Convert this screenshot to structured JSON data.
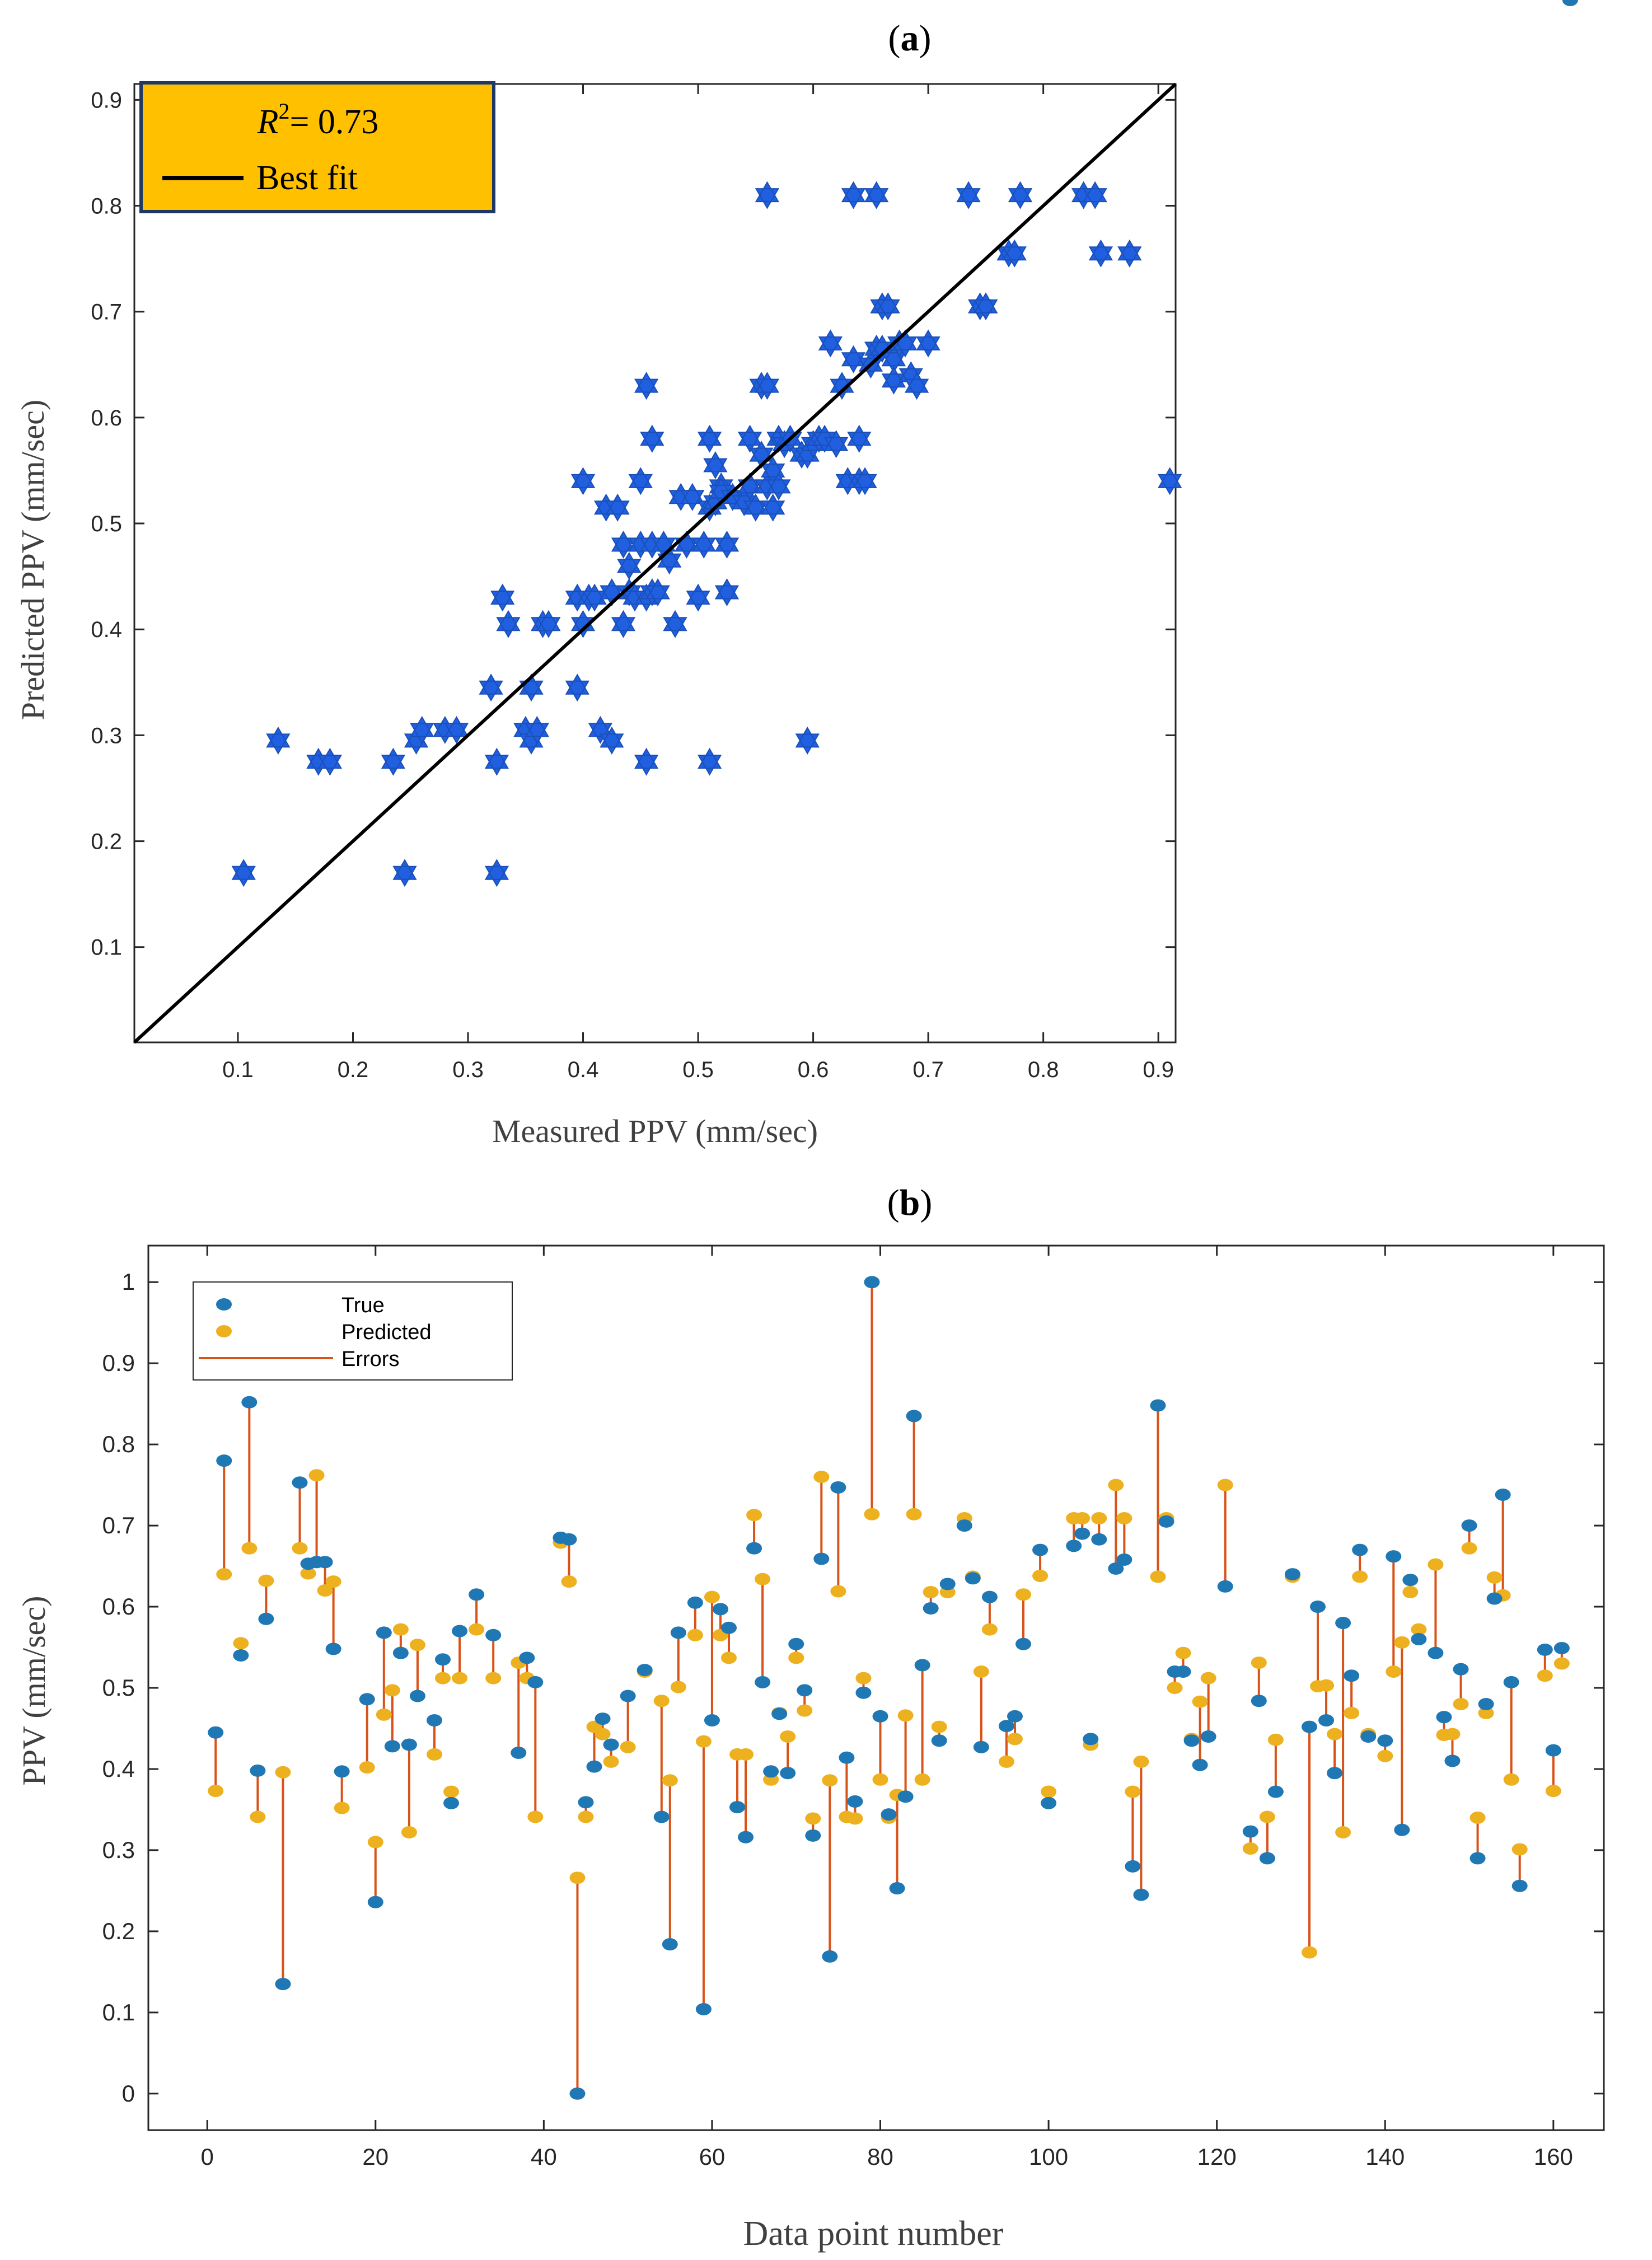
{
  "panels": {
    "a": {
      "label_open": "(",
      "label_letter": "a",
      "label_close": ")"
    },
    "b": {
      "label_open": "(",
      "label_letter": "b",
      "label_close": ")"
    }
  },
  "chart_data": [
    {
      "type": "scatter",
      "title": "",
      "xlabel": "Measured PPV (mm/sec)",
      "ylabel": "Predicted PPV (mm/sec)",
      "xlim": [
        0.01,
        0.915
      ],
      "ylim": [
        0.01,
        0.915
      ],
      "xticks": [
        "0.1",
        "0.2",
        "0.3",
        "0.4",
        "0.5",
        "0.6",
        "0.7",
        "0.8",
        "0.9"
      ],
      "yticks": [
        "0.1",
        "0.2",
        "0.3",
        "0.4",
        "0.5",
        "0.6",
        "0.7",
        "0.8",
        "0.9"
      ],
      "grid": false,
      "legend_position": "top-left",
      "annotation_r2_base": "R",
      "annotation_r2_exp": "2",
      "annotation_r2_value": "= 0.73",
      "legend_best_fit": "Best fit",
      "best_fit_line": {
        "x": [
          0.01,
          0.915
        ],
        "y": [
          0.01,
          0.915
        ]
      },
      "marker_color": "#1f5fe0",
      "line_color": "#000000",
      "legend_bg": "#ffc000",
      "legend_border": "#1f3864",
      "series": [
        {
          "x": [
            0.105,
            0.135,
            0.17,
            0.18,
            0.235,
            0.245,
            0.255,
            0.26,
            0.28,
            0.29,
            0.32,
            0.325,
            0.325,
            0.33,
            0.335,
            0.35,
            0.355,
            0.355,
            0.36,
            0.365,
            0.37,
            0.395,
            0.395,
            0.4,
            0.4,
            0.405,
            0.41,
            0.415,
            0.42,
            0.425,
            0.425,
            0.43,
            0.435,
            0.435,
            0.44,
            0.44,
            0.445,
            0.45,
            0.45,
            0.455,
            0.455,
            0.46,
            0.46,
            0.46,
            0.465,
            0.47,
            0.475,
            0.48,
            0.485,
            0.49,
            0.495,
            0.5,
            0.505,
            0.51,
            0.51,
            0.515,
            0.515,
            0.52,
            0.52,
            0.525,
            0.525,
            0.53,
            0.54,
            0.545,
            0.545,
            0.55,
            0.555,
            0.555,
            0.56,
            0.56,
            0.565,
            0.565,
            0.57,
            0.57,
            0.575,
            0.58,
            0.59,
            0.595,
            0.6,
            0.605,
            0.61,
            0.615,
            0.62,
            0.625,
            0.63,
            0.635,
            0.64,
            0.64,
            0.645,
            0.65,
            0.655,
            0.66,
            0.66,
            0.665,
            0.67,
            0.67,
            0.675,
            0.68,
            0.685,
            0.69,
            0.7,
            0.735,
            0.745,
            0.75,
            0.77,
            0.775,
            0.78,
            0.835,
            0.845,
            0.85,
            0.875,
            0.91,
            0.56,
            0.635,
            0.655,
            0.455,
            0.51,
            0.595
          ],
          "y": [
            0.17,
            0.295,
            0.275,
            0.275,
            0.275,
            0.17,
            0.295,
            0.305,
            0.305,
            0.305,
            0.345,
            0.275,
            0.17,
            0.43,
            0.405,
            0.305,
            0.345,
            0.295,
            0.305,
            0.405,
            0.405,
            0.345,
            0.43,
            0.405,
            0.54,
            0.43,
            0.43,
            0.305,
            0.515,
            0.435,
            0.295,
            0.515,
            0.405,
            0.48,
            0.46,
            0.435,
            0.43,
            0.54,
            0.48,
            0.43,
            0.63,
            0.58,
            0.435,
            0.48,
            0.435,
            0.48,
            0.465,
            0.405,
            0.525,
            0.48,
            0.525,
            0.43,
            0.48,
            0.58,
            0.515,
            0.52,
            0.555,
            0.535,
            0.53,
            0.435,
            0.48,
            0.525,
            0.52,
            0.58,
            0.535,
            0.515,
            0.63,
            0.565,
            0.63,
            0.535,
            0.515,
            0.55,
            0.58,
            0.535,
            0.575,
            0.58,
            0.565,
            0.565,
            0.575,
            0.58,
            0.58,
            0.67,
            0.575,
            0.63,
            0.54,
            0.655,
            0.58,
            0.54,
            0.54,
            0.65,
            0.665,
            0.665,
            0.705,
            0.705,
            0.655,
            0.635,
            0.67,
            0.67,
            0.64,
            0.63,
            0.67,
            0.81,
            0.705,
            0.705,
            0.755,
            0.755,
            0.81,
            0.81,
            0.81,
            0.755,
            0.755,
            0.54,
            0.81,
            0.81,
            0.81,
            0.275,
            0.275,
            0.295
          ]
        }
      ]
    },
    {
      "type": "scatter",
      "title": "",
      "xlabel": "Data point number",
      "ylabel": "PPV (mm/sec)",
      "xlim": [
        -7,
        166
      ],
      "ylim": [
        -0.045,
        1.045
      ],
      "xticks": [
        "0",
        "20",
        "40",
        "60",
        "80",
        "100",
        "120",
        "140",
        "160"
      ],
      "yticks": [
        "0",
        "0.1",
        "0.2",
        "0.3",
        "0.4",
        "0.5",
        "0.6",
        "0.7",
        "0.8",
        "0.9",
        "1"
      ],
      "grid": false,
      "legend_position": "top-left",
      "colors": {
        "true": "#1f77b4",
        "predicted": "#edb120",
        "errors": "#d95319"
      },
      "x": [
        1,
        2,
        4,
        5,
        6,
        7,
        9,
        11,
        12,
        13,
        14,
        15,
        16,
        19,
        20,
        21,
        22,
        23,
        24,
        25,
        27,
        28,
        29,
        30,
        32,
        34,
        37,
        38,
        39,
        42,
        43,
        44,
        45,
        46,
        47,
        48,
        50,
        52,
        54,
        55,
        56,
        58,
        59,
        60,
        61,
        62,
        63,
        64,
        65,
        66,
        67,
        68,
        69,
        70,
        71,
        72,
        73,
        74,
        75,
        76,
        77,
        78,
        79,
        80,
        81,
        82,
        83,
        84,
        85,
        86,
        87,
        88,
        90,
        91,
        92,
        93,
        95,
        96,
        97,
        99,
        100,
        103,
        104,
        105,
        106,
        108,
        109,
        110,
        111,
        113,
        114,
        115,
        116,
        117,
        118,
        119,
        121,
        124,
        125,
        126,
        127,
        129,
        131,
        132,
        133,
        134,
        135,
        136,
        137,
        138,
        140,
        141,
        142,
        143,
        144,
        146,
        147,
        148,
        149,
        150,
        151,
        152,
        153,
        154,
        155,
        156,
        159,
        160,
        161,
        162
      ],
      "series": [
        {
          "name": "True",
          "values": [
            0.445,
            0.78,
            0.54,
            0.852,
            0.398,
            0.585,
            0.135,
            0.753,
            0.653,
            0.655,
            0.655,
            0.548,
            0.397,
            0.486,
            0.236,
            0.568,
            0.428,
            0.543,
            0.43,
            0.49,
            0.46,
            0.535,
            0.358,
            0.57,
            0.615,
            0.565,
            0.42,
            0.537,
            0.507,
            0.685,
            0.683,
            0.0,
            0.359,
            0.403,
            0.462,
            0.43,
            0.49,
            0.522,
            0.341,
            0.184,
            0.568,
            0.605,
            0.104,
            0.46,
            0.597,
            0.574,
            0.353,
            0.316,
            0.672,
            0.507,
            0.397,
            0.468,
            0.395,
            0.554,
            0.497,
            0.318,
            0.659,
            0.169,
            0.747,
            0.414,
            0.36,
            0.494,
            1.0,
            0.465,
            0.344,
            0.253,
            0.366,
            0.835,
            0.528,
            0.598,
            0.435,
            0.628,
            0.7,
            0.635,
            0.427,
            0.612,
            0.453,
            0.465,
            0.554,
            0.67,
            0.358,
            0.675,
            0.69,
            0.437,
            0.683,
            0.647,
            0.658,
            0.28,
            0.245,
            0.848,
            0.705,
            0.52,
            0.52,
            0.435,
            0.405,
            0.44,
            0.625,
            0.323,
            0.484,
            0.29,
            0.372,
            0.64,
            0.452,
            0.6,
            0.46,
            0.395,
            0.58,
            0.515,
            0.67,
            0.44,
            0.435,
            0.662,
            0.325,
            0.633,
            0.56,
            0.543,
            0.464,
            0.41,
            0.523,
            0.7,
            0.29,
            0.48,
            0.61,
            0.738,
            0.507,
            0.256,
            0.547,
            0.423,
            0.549
          ]
        },
        {
          "name": "Predicted",
          "values": [
            0.373,
            0.64,
            0.555,
            0.672,
            0.341,
            0.632,
            0.396,
            0.672,
            0.641,
            0.762,
            0.62,
            0.631,
            0.352,
            0.402,
            0.31,
            0.467,
            0.497,
            0.572,
            0.322,
            0.553,
            0.418,
            0.512,
            0.372,
            0.512,
            0.572,
            0.512,
            0.531,
            0.512,
            0.341,
            0.679,
            0.631,
            0.266,
            0.341,
            0.452,
            0.443,
            0.409,
            0.427,
            0.52,
            0.484,
            0.386,
            0.501,
            0.565,
            0.434,
            0.612,
            0.565,
            0.537,
            0.418,
            0.418,
            0.713,
            0.634,
            0.387,
            0.469,
            0.44,
            0.537,
            0.472,
            0.339,
            0.76,
            0.386,
            0.619,
            0.341,
            0.339,
            0.512,
            0.714,
            0.387,
            0.34,
            0.368,
            0.466,
            0.714,
            0.387,
            0.618,
            0.452,
            0.618,
            0.709,
            0.637,
            0.52,
            0.572,
            0.409,
            0.437,
            0.615,
            0.638,
            0.372,
            0.709,
            0.709,
            0.43,
            0.709,
            0.75,
            0.709,
            0.372,
            0.409,
            0.637,
            0.709,
            0.5,
            0.543,
            0.437,
            0.483,
            0.512,
            0.75,
            0.302,
            0.531,
            0.341,
            0.436,
            0.637,
            0.174,
            0.502,
            0.503,
            0.443,
            0.322,
            0.469,
            0.637,
            0.443,
            0.416,
            0.52,
            0.556,
            0.618,
            0.572,
            0.652,
            0.442,
            0.443,
            0.48,
            0.672,
            0.34,
            0.469,
            0.636,
            0.614,
            0.387,
            0.301,
            0.515,
            0.373,
            0.53
          ]
        }
      ],
      "error_series_name": "Errors"
    }
  ]
}
